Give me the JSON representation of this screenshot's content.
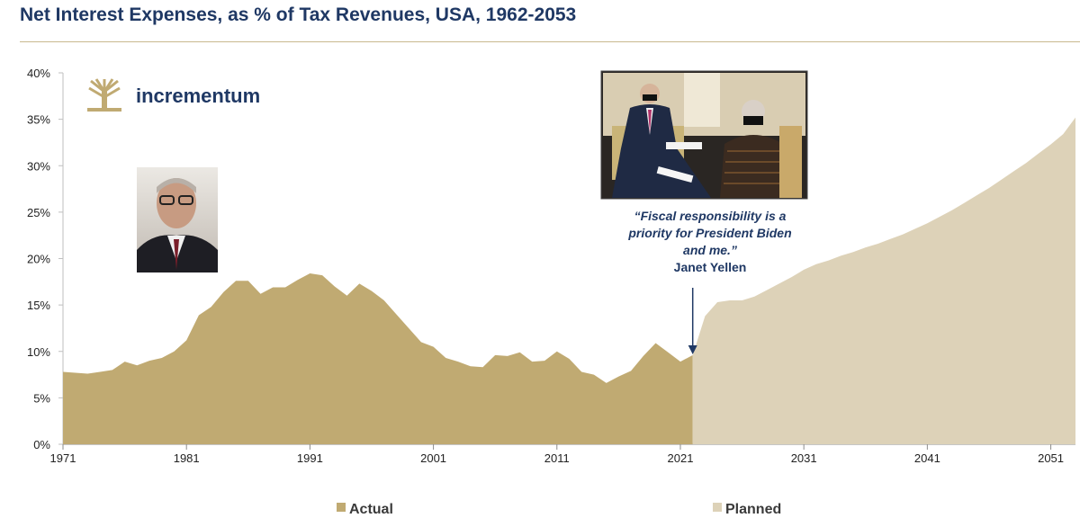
{
  "chart_data": {
    "type": "area",
    "title": "Net Interest Expenses, as % of Tax Revenues, USA, 1962-2053",
    "xlabel": "",
    "ylabel": "",
    "xlim": [
      1971,
      2053
    ],
    "ylim": [
      0,
      40
    ],
    "x_ticks": [
      "1971",
      "1981",
      "1991",
      "2001",
      "2011",
      "2021",
      "2031",
      "2041",
      "2051"
    ],
    "y_ticks": [
      "0%",
      "5%",
      "10%",
      "15%",
      "20%",
      "25%",
      "30%",
      "35%",
      "40%"
    ],
    "legend_position": "bottom",
    "series": [
      {
        "name": "Actual",
        "color": "#c0aa72",
        "x": [
          1971,
          1972,
          1973,
          1974,
          1975,
          1976,
          1977,
          1978,
          1979,
          1980,
          1981,
          1982,
          1983,
          1984,
          1985,
          1986,
          1987,
          1988,
          1989,
          1990,
          1991,
          1992,
          1993,
          1994,
          1995,
          1996,
          1997,
          1998,
          1999,
          2000,
          2001,
          2002,
          2003,
          2004,
          2005,
          2006,
          2007,
          2008,
          2009,
          2010,
          2011,
          2012,
          2013,
          2014,
          2015,
          2016,
          2017,
          2018,
          2019,
          2020,
          2021,
          2022
        ],
        "values": [
          7.8,
          7.7,
          7.6,
          7.8,
          8.0,
          8.9,
          8.5,
          9.0,
          9.3,
          10.0,
          11.2,
          13.9,
          14.8,
          16.4,
          17.6,
          17.6,
          16.2,
          16.9,
          16.9,
          17.7,
          18.4,
          18.2,
          17.0,
          16.0,
          17.3,
          16.5,
          15.5,
          14.0,
          12.5,
          11.0,
          10.5,
          9.3,
          8.9,
          8.4,
          8.3,
          9.6,
          9.5,
          9.9,
          8.9,
          9.0,
          10.0,
          9.2,
          7.8,
          7.5,
          6.6,
          7.3,
          7.9,
          9.5,
          10.9,
          9.9,
          8.9,
          9.6
        ]
      },
      {
        "name": "Planned",
        "color": "#ddd2b8",
        "x": [
          2022,
          2023,
          2024,
          2025,
          2026,
          2027,
          2028,
          2029,
          2030,
          2031,
          2032,
          2033,
          2034,
          2035,
          2036,
          2037,
          2038,
          2039,
          2040,
          2041,
          2042,
          2043,
          2044,
          2045,
          2046,
          2047,
          2048,
          2049,
          2050,
          2051,
          2052,
          2053
        ],
        "values": [
          9.6,
          13.8,
          15.3,
          15.5,
          15.5,
          15.9,
          16.6,
          17.3,
          18.0,
          18.8,
          19.4,
          19.8,
          20.3,
          20.7,
          21.2,
          21.6,
          22.1,
          22.6,
          23.2,
          23.8,
          24.5,
          25.2,
          26.0,
          26.8,
          27.6,
          28.5,
          29.4,
          30.3,
          31.3,
          32.3,
          33.4,
          35.2
        ]
      }
    ],
    "annotations": [
      {
        "text_lines": [
          "“Fiscal responsibility is a",
          "priority for President Biden",
          "and me.”"
        ],
        "attribution": "Janet Yellen",
        "x": 2022
      }
    ]
  },
  "logo": {
    "text": "incrementum",
    "icon": "tree-icon"
  },
  "photos": [
    {
      "icon": "portrait-photo-volcker"
    },
    {
      "icon": "photo-biden-yellen"
    }
  ]
}
